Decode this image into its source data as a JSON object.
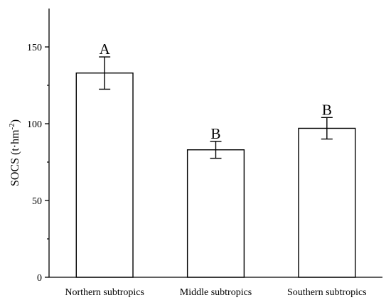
{
  "chart_data": {
    "type": "bar",
    "title": "",
    "xlabel": "",
    "ylabel": {
      "prefix": "SOCS (t·hm",
      "sup": "-2",
      "suffix": ")"
    },
    "categories": [
      "Northern subtropics",
      "Middle subtropics",
      "Southern subtropics"
    ],
    "values": [
      133,
      83,
      97
    ],
    "error": [
      10.5,
      5.5,
      7
    ],
    "significance": [
      "A",
      "B",
      "B"
    ],
    "ylim": [
      0,
      175
    ],
    "yticks": [
      0,
      50,
      100,
      150
    ],
    "grid": false,
    "legend": "none",
    "colors": {
      "bar_fill": "#ffffff",
      "stroke": "#000000"
    }
  }
}
